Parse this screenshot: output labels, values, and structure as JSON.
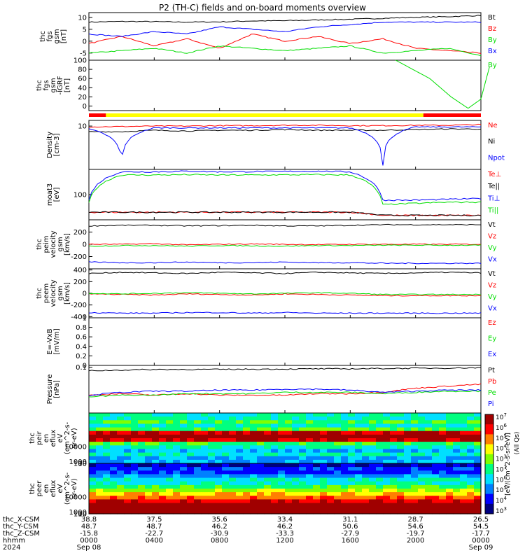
{
  "title": "P2 (TH-C) fields and on-board moments overview",
  "colors": {
    "black": "#000000",
    "red": "#ff0000",
    "green": "#00dd00",
    "blue": "#0000ff",
    "yellow": "#ffff00"
  },
  "chart_data": [
    {
      "id": "p1",
      "type": "line",
      "ylabel": [
        "thc",
        "fgs",
        "gsm",
        "[nT]"
      ],
      "ylim": [
        -8,
        12
      ],
      "yticks": [
        -5,
        0,
        5,
        10
      ],
      "series": [
        {
          "name": "Bt",
          "color": "#000000",
          "values": [
            8,
            8.3,
            8.2,
            8.0,
            8.1,
            8.5,
            8.6,
            8.9,
            9.2,
            9.6,
            10.0,
            10.3,
            10.8
          ]
        },
        {
          "name": "Bz",
          "color": "#ff0000",
          "values": [
            -1,
            2,
            -2,
            1,
            -3,
            3,
            0,
            2,
            -1,
            1,
            -3,
            -4,
            -5
          ]
        },
        {
          "name": "By",
          "color": "#00dd00",
          "values": [
            -5,
            -4,
            -3,
            -5,
            -2,
            -3,
            -4,
            -3,
            -2,
            -5,
            -4,
            -3,
            -6
          ]
        },
        {
          "name": "Bx",
          "color": "#0000ff",
          "values": [
            3,
            2,
            4,
            3,
            6,
            5,
            4,
            6,
            7,
            8,
            8,
            8,
            8
          ]
        }
      ]
    },
    {
      "id": "p2",
      "type": "line",
      "ylabel": [
        "thc",
        "fgs",
        "gsm",
        "-IGRF",
        "[nT]"
      ],
      "ylim": [
        -10,
        100
      ],
      "yticks": [
        0,
        20,
        40,
        60,
        80,
        100
      ],
      "series": [
        {
          "name": "By",
          "color": "#00dd00",
          "x": [
            1440,
            1600,
            1700,
            1780,
            1840,
            1880
          ],
          "values": [
            100,
            60,
            20,
            -5,
            15,
            85
          ]
        }
      ]
    },
    {
      "id": "p3",
      "type": "line",
      "log": true,
      "ylabel": [
        "Density",
        "[cm-3]"
      ],
      "ylim": [
        0.05,
        20
      ],
      "yticks": [
        10
      ],
      "series": [
        {
          "name": "Ne",
          "color": "#ff0000",
          "values": [
            9,
            9.5,
            10,
            10,
            10.5,
            10.5,
            11,
            11,
            10.5,
            10.5,
            11,
            11,
            12
          ]
        },
        {
          "name": "Ni",
          "color": "#000000",
          "values": [
            5,
            5,
            6,
            5.5,
            6,
            6,
            6.5,
            6,
            6,
            6,
            6.5,
            7,
            7
          ]
        },
        {
          "name": "Npot",
          "color": "#0000ff",
          "values": [
            7,
            0.08,
            8,
            8,
            8,
            8,
            8,
            8,
            8,
            0.08,
            9,
            9,
            9
          ]
        }
      ]
    },
    {
      "id": "p4",
      "type": "line",
      "log": true,
      "ylabel": [
        "moat3",
        "[eV]"
      ],
      "ylim": [
        10,
        1000
      ],
      "yticks": [
        100
      ],
      "series": [
        {
          "name": "Te⊥",
          "color": "#ff0000",
          "values": [
            20,
            20,
            20,
            20,
            20,
            20,
            20,
            20,
            20,
            15,
            15,
            15,
            15
          ]
        },
        {
          "name": "Te||",
          "color": "#000000",
          "values": [
            20,
            20,
            20,
            20,
            20,
            20,
            20,
            20,
            20,
            15,
            15,
            15,
            15
          ]
        },
        {
          "name": "Ti⊥",
          "color": "#0000ff",
          "values": [
            60,
            800,
            800,
            850,
            800,
            820,
            830,
            850,
            800,
            60,
            60,
            65,
            70
          ]
        },
        {
          "name": "Ti||",
          "color": "#00dd00",
          "values": [
            50,
            600,
            600,
            620,
            600,
            600,
            610,
            620,
            600,
            40,
            45,
            50,
            50
          ]
        }
      ]
    },
    {
      "id": "p5",
      "type": "line",
      "ylabel": [
        "thc",
        "peim",
        "velocity",
        "gsm",
        "[km/s]"
      ],
      "ylim": [
        -400,
        400
      ],
      "yticks": [
        -200,
        0,
        200
      ],
      "series": [
        {
          "name": "Vt",
          "color": "#000000",
          "values": [
            300,
            310,
            310,
            300,
            305,
            310,
            300,
            300,
            310,
            320,
            320,
            320,
            320
          ]
        },
        {
          "name": "Vz",
          "color": "#ff0000",
          "values": [
            0,
            0,
            10,
            -10,
            0,
            5,
            0,
            -5,
            0,
            0,
            0,
            0,
            0
          ]
        },
        {
          "name": "Vy",
          "color": "#00dd00",
          "values": [
            -30,
            -20,
            -20,
            -30,
            -20,
            -25,
            -30,
            -20,
            -20,
            -15,
            -15,
            -15,
            -15
          ]
        },
        {
          "name": "Vx",
          "color": "#0000ff",
          "values": [
            -290,
            -300,
            -300,
            -290,
            -300,
            -300,
            -290,
            -300,
            -300,
            -310,
            -310,
            -310,
            -310
          ]
        }
      ]
    },
    {
      "id": "p6",
      "type": "line",
      "ylabel": [
        "thc",
        "peem",
        "velocity",
        "gsm",
        "[km/s]"
      ],
      "ylim": [
        -420,
        420
      ],
      "yticks": [
        -400,
        -200,
        0,
        200,
        400
      ],
      "series": [
        {
          "name": "Vt",
          "color": "#000000",
          "values": [
            340,
            360,
            350,
            340,
            360,
            350,
            340,
            360,
            350,
            340,
            350,
            360,
            350
          ]
        },
        {
          "name": "Vz",
          "color": "#ff0000",
          "values": [
            -10,
            -20,
            -30,
            -10,
            -20,
            -30,
            -10,
            -20,
            -30,
            -40,
            -40,
            -40,
            -40
          ]
        },
        {
          "name": "Vy",
          "color": "#00dd00",
          "values": [
            0,
            -10,
            0,
            10,
            0,
            -10,
            0,
            10,
            0,
            -20,
            -20,
            -20,
            -20
          ]
        },
        {
          "name": "Vx",
          "color": "#0000ff",
          "values": [
            -330,
            -340,
            -340,
            -330,
            -330,
            -340,
            -330,
            -340,
            -340,
            -340,
            -340,
            -340,
            -340
          ]
        }
      ]
    },
    {
      "id": "p7",
      "type": "line",
      "ylabel": [
        "E=-VxB",
        "[mV/m]"
      ],
      "ylim": [
        0,
        1
      ],
      "yticks": [
        0.0,
        0.2,
        0.4,
        0.6,
        0.8,
        1.0
      ],
      "series": [
        {
          "name": "Ez",
          "color": "#ff0000",
          "values": []
        },
        {
          "name": "Ey",
          "color": "#00dd00",
          "values": []
        },
        {
          "name": "Ex",
          "color": "#0000ff",
          "values": []
        }
      ]
    },
    {
      "id": "p8",
      "type": "line",
      "log": true,
      "ylabel": [
        "Pressure",
        "[nPa]"
      ],
      "ylim": [
        0.001,
        0.12
      ],
      "yticks": [
        0.1
      ],
      "series": [
        {
          "name": "Pt",
          "color": "#000000",
          "values": [
            0.07,
            0.075,
            0.08,
            0.08,
            0.08,
            0.082,
            0.083,
            0.085,
            0.085,
            0.088,
            0.09,
            0.092,
            0.095
          ]
        },
        {
          "name": "Pb",
          "color": "#ff0000",
          "values": [
            0.006,
            0.007,
            0.006,
            0.007,
            0.006,
            0.006,
            0.006,
            0.007,
            0.007,
            0.008,
            0.012,
            0.015,
            0.018
          ]
        },
        {
          "name": "Pe",
          "color": "#00dd00",
          "values": [
            0.005,
            0.006,
            0.006,
            0.007,
            0.007,
            0.007,
            0.008,
            0.008,
            0.008,
            0.007,
            0.008,
            0.009,
            0.009
          ]
        },
        {
          "name": "Pi",
          "color": "#0000ff",
          "values": [
            0.006,
            0.008,
            0.009,
            0.009,
            0.01,
            0.01,
            0.011,
            0.011,
            0.01,
            0.008,
            0.009,
            0.01,
            0.01
          ]
        }
      ]
    },
    {
      "id": "p9",
      "type": "heatmap",
      "ylabel": [
        "thc",
        "peir",
        "en",
        "eflux",
        "eV",
        "(cm^2-s-",
        "sr-eV)"
      ],
      "ylim": [
        5,
        30000
      ],
      "yticks": [
        10,
        100,
        1000,
        10000
      ]
    },
    {
      "id": "p10",
      "type": "heatmap",
      "ylabel": [
        "thc",
        "peer",
        "en",
        "eflux",
        "eV",
        "(cm^2-s-",
        "sr-eV)"
      ],
      "ylim": [
        5,
        30000
      ],
      "yticks": [
        10,
        100,
        1000,
        10000
      ]
    }
  ],
  "colorbar": {
    "ticks": [
      "10^7",
      "10^6",
      "10^5",
      "10^4",
      "10^3",
      "10^7",
      "10^6",
      "10^5",
      "10^4",
      "10^3"
    ],
    "label": "[eV/(cm^2-s-sr-eV)]",
    "sublabel": "(All Qs)"
  },
  "state_bar": {
    "segments": [
      {
        "color": "#ff0000",
        "start": 0,
        "end": 80
      },
      {
        "color": "#ffff00",
        "start": 80,
        "end": 1570
      },
      {
        "color": "#ff0000",
        "start": 1570,
        "end": 1840
      }
    ]
  },
  "xaxis": {
    "start": 0,
    "end": 1840,
    "rows": [
      {
        "label": "thc_X-CSM",
        "values": [
          "38.8",
          "37.5",
          "35.6",
          "33.4",
          "31.1",
          "28.7",
          "26.5"
        ]
      },
      {
        "label": "thc_Y-CSM",
        "values": [
          "48.7",
          "48.7",
          "46.2",
          "46.2",
          "50.6",
          "54.6",
          "54.5"
        ]
      },
      {
        "label": "thc_Z-CSM",
        "values": [
          "-15.8",
          "-22.7",
          "-30.9",
          "-33.3",
          "-27.9",
          "-19.7",
          "-17.7"
        ]
      },
      {
        "label": "hhmm",
        "values": [
          "0000",
          "0400",
          "0800",
          "1200",
          "1600",
          "2000",
          "0000"
        ]
      }
    ],
    "year": "2024",
    "date_start": "Sep 08",
    "date_end": "Sep 09"
  }
}
